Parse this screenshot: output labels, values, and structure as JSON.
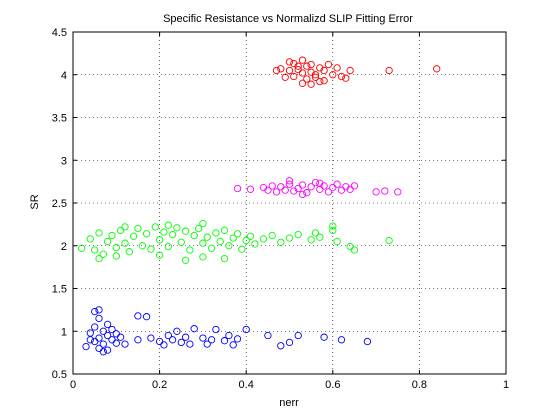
{
  "chart_data": {
    "type": "scatter",
    "title": "Specific Resistance vs Normalizd SLIP Fitting Error",
    "xlabel": "nerr",
    "ylabel": "SR",
    "xlim": [
      0,
      1
    ],
    "ylim": [
      0.5,
      4.5
    ],
    "xticks": [
      "0",
      "0.2",
      "0.4",
      "0.6",
      "0.8",
      "1"
    ],
    "yticks": [
      "0.5",
      "1",
      "1.5",
      "2",
      "2.5",
      "3",
      "3.5",
      "4",
      "4.5"
    ],
    "grid": true,
    "marker": "open-circle",
    "series": [
      {
        "color": "#ff0000",
        "points": [
          [
            0.5,
            4.05
          ],
          [
            0.51,
            3.98
          ],
          [
            0.52,
            4.1
          ],
          [
            0.53,
            4.02
          ],
          [
            0.54,
            3.95
          ],
          [
            0.55,
            4.12
          ],
          [
            0.56,
            4.0
          ],
          [
            0.57,
            4.08
          ],
          [
            0.58,
            3.93
          ],
          [
            0.5,
            4.15
          ],
          [
            0.53,
            3.9
          ],
          [
            0.55,
            4.03
          ],
          [
            0.52,
            4.06
          ],
          [
            0.54,
            4.1
          ],
          [
            0.56,
            3.97
          ],
          [
            0.58,
            4.05
          ],
          [
            0.6,
            4.0
          ],
          [
            0.61,
            4.08
          ],
          [
            0.62,
            3.98
          ],
          [
            0.64,
            4.05
          ],
          [
            0.48,
            4.07
          ],
          [
            0.49,
            3.97
          ],
          [
            0.47,
            4.05
          ],
          [
            0.51,
            4.13
          ],
          [
            0.57,
            3.92
          ],
          [
            0.59,
            4.12
          ],
          [
            0.53,
            4.17
          ],
          [
            0.55,
            3.89
          ],
          [
            0.63,
            3.96
          ],
          [
            0.73,
            4.05
          ],
          [
            0.84,
            4.07
          ]
        ]
      },
      {
        "color": "#ff00ff",
        "points": [
          [
            0.38,
            2.67
          ],
          [
            0.41,
            2.66
          ],
          [
            0.44,
            2.68
          ],
          [
            0.46,
            2.7
          ],
          [
            0.47,
            2.63
          ],
          [
            0.48,
            2.69
          ],
          [
            0.49,
            2.65
          ],
          [
            0.5,
            2.72
          ],
          [
            0.51,
            2.64
          ],
          [
            0.52,
            2.67
          ],
          [
            0.53,
            2.71
          ],
          [
            0.54,
            2.62
          ],
          [
            0.55,
            2.69
          ],
          [
            0.56,
            2.74
          ],
          [
            0.57,
            2.66
          ],
          [
            0.58,
            2.7
          ],
          [
            0.59,
            2.63
          ],
          [
            0.6,
            2.68
          ],
          [
            0.61,
            2.72
          ],
          [
            0.62,
            2.65
          ],
          [
            0.63,
            2.69
          ],
          [
            0.64,
            2.66
          ],
          [
            0.65,
            2.7
          ],
          [
            0.5,
            2.76
          ],
          [
            0.53,
            2.6
          ],
          [
            0.45,
            2.65
          ],
          [
            0.57,
            2.73
          ],
          [
            0.7,
            2.63
          ],
          [
            0.72,
            2.64
          ],
          [
            0.75,
            2.63
          ]
        ]
      },
      {
        "color": "#00ff00",
        "points": [
          [
            0.02,
            1.97
          ],
          [
            0.04,
            2.08
          ],
          [
            0.05,
            1.95
          ],
          [
            0.06,
            2.15
          ],
          [
            0.07,
            1.9
          ],
          [
            0.08,
            2.05
          ],
          [
            0.09,
            2.12
          ],
          [
            0.1,
            1.98
          ],
          [
            0.11,
            2.18
          ],
          [
            0.12,
            2.03
          ],
          [
            0.13,
            1.93
          ],
          [
            0.14,
            2.11
          ],
          [
            0.15,
            2.2
          ],
          [
            0.16,
            2.0
          ],
          [
            0.17,
            2.14
          ],
          [
            0.18,
            1.96
          ],
          [
            0.19,
            2.22
          ],
          [
            0.2,
            2.07
          ],
          [
            0.21,
            2.16
          ],
          [
            0.22,
            1.99
          ],
          [
            0.23,
            2.13
          ],
          [
            0.24,
            2.21
          ],
          [
            0.25,
            2.04
          ],
          [
            0.26,
            2.17
          ],
          [
            0.27,
            1.95
          ],
          [
            0.28,
            2.12
          ],
          [
            0.29,
            2.2
          ],
          [
            0.3,
            2.03
          ],
          [
            0.31,
            2.1
          ],
          [
            0.32,
            1.97
          ],
          [
            0.33,
            2.15
          ],
          [
            0.34,
            2.05
          ],
          [
            0.35,
            2.18
          ],
          [
            0.36,
            2.0
          ],
          [
            0.37,
            2.09
          ],
          [
            0.38,
            2.14
          ],
          [
            0.39,
            1.96
          ],
          [
            0.4,
            2.06
          ],
          [
            0.41,
            2.11
          ],
          [
            0.42,
            2.02
          ],
          [
            0.44,
            2.08
          ],
          [
            0.46,
            2.12
          ],
          [
            0.48,
            2.04
          ],
          [
            0.5,
            2.09
          ],
          [
            0.52,
            2.13
          ],
          [
            0.55,
            2.07
          ],
          [
            0.57,
            2.1
          ],
          [
            0.6,
            2.18
          ],
          [
            0.61,
            2.05
          ],
          [
            0.64,
            1.99
          ],
          [
            0.65,
            1.95
          ],
          [
            0.06,
            1.85
          ],
          [
            0.1,
            1.88
          ],
          [
            0.2,
            1.89
          ],
          [
            0.26,
            1.83
          ],
          [
            0.3,
            1.87
          ],
          [
            0.22,
            2.24
          ],
          [
            0.3,
            2.26
          ],
          [
            0.12,
            2.22
          ],
          [
            0.35,
            1.85
          ],
          [
            0.56,
            2.15
          ],
          [
            0.6,
            2.23
          ],
          [
            0.73,
            2.06
          ]
        ]
      },
      {
        "color": "#0000ff",
        "points": [
          [
            0.03,
            0.82
          ],
          [
            0.04,
            0.98
          ],
          [
            0.05,
            1.05
          ],
          [
            0.05,
            0.88
          ],
          [
            0.06,
            1.15
          ],
          [
            0.06,
            0.92
          ],
          [
            0.07,
            1.0
          ],
          [
            0.07,
            0.85
          ],
          [
            0.08,
            1.08
          ],
          [
            0.08,
            0.95
          ],
          [
            0.09,
            0.9
          ],
          [
            0.09,
            1.02
          ],
          [
            0.1,
            0.86
          ],
          [
            0.1,
            0.97
          ],
          [
            0.06,
            0.8
          ],
          [
            0.07,
            0.76
          ],
          [
            0.08,
            0.78
          ],
          [
            0.05,
            1.23
          ],
          [
            0.06,
            1.25
          ],
          [
            0.04,
            0.9
          ],
          [
            0.11,
            0.93
          ],
          [
            0.12,
            0.85
          ],
          [
            0.15,
            0.9
          ],
          [
            0.15,
            1.18
          ],
          [
            0.17,
            1.17
          ],
          [
            0.18,
            0.92
          ],
          [
            0.2,
            0.88
          ],
          [
            0.21,
            0.84
          ],
          [
            0.22,
            0.95
          ],
          [
            0.23,
            0.9
          ],
          [
            0.24,
            1.0
          ],
          [
            0.25,
            0.87
          ],
          [
            0.26,
            0.93
          ],
          [
            0.27,
            0.85
          ],
          [
            0.28,
            1.03
          ],
          [
            0.3,
            0.92
          ],
          [
            0.31,
            0.85
          ],
          [
            0.32,
            0.9
          ],
          [
            0.33,
            1.02
          ],
          [
            0.35,
            0.89
          ],
          [
            0.36,
            0.95
          ],
          [
            0.37,
            0.84
          ],
          [
            0.38,
            0.91
          ],
          [
            0.4,
            1.02
          ],
          [
            0.45,
            0.95
          ],
          [
            0.48,
            0.83
          ],
          [
            0.5,
            0.87
          ],
          [
            0.52,
            0.95
          ],
          [
            0.58,
            0.93
          ],
          [
            0.62,
            0.9
          ],
          [
            0.68,
            0.88
          ]
        ]
      }
    ]
  }
}
